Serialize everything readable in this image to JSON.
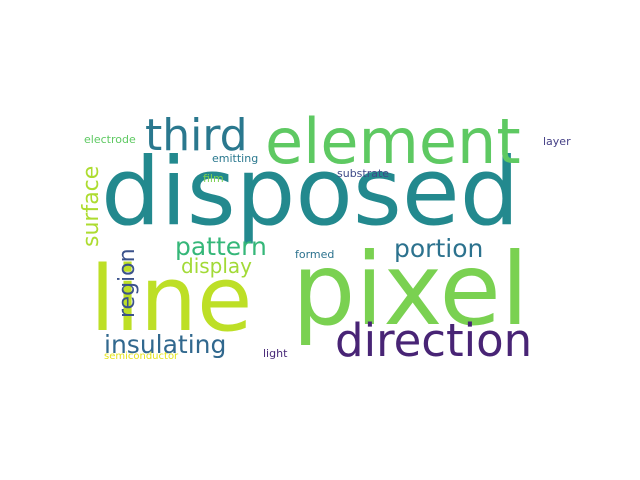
{
  "word_cloud": {
    "words": [
      {
        "text": "disposed",
        "color": "#23898e"
      },
      {
        "text": "pixel",
        "color": "#7ad151"
      },
      {
        "text": "line",
        "color": "#bddf26"
      },
      {
        "text": "element",
        "color": "#5ec962"
      },
      {
        "text": "direction",
        "color": "#482475"
      },
      {
        "text": "third",
        "color": "#2a788e"
      },
      {
        "text": "insulating",
        "color": "#31688e"
      },
      {
        "text": "pattern",
        "color": "#35b779"
      },
      {
        "text": "portion",
        "color": "#2c728e"
      },
      {
        "text": "display",
        "color": "#a2da37"
      },
      {
        "text": "surface",
        "color": "#addc30"
      },
      {
        "text": "region",
        "color": "#3b528b"
      },
      {
        "text": "electrode",
        "color": "#5ec962"
      },
      {
        "text": "emitting",
        "color": "#2a788e"
      },
      {
        "text": "substrate",
        "color": "#3e4a89"
      },
      {
        "text": "layer",
        "color": "#433e85"
      },
      {
        "text": "film",
        "color": "#7ad151"
      },
      {
        "text": "formed",
        "color": "#2c728e"
      },
      {
        "text": "semiconductor",
        "color": "#e5e419"
      },
      {
        "text": "light",
        "color": "#482878"
      }
    ]
  }
}
